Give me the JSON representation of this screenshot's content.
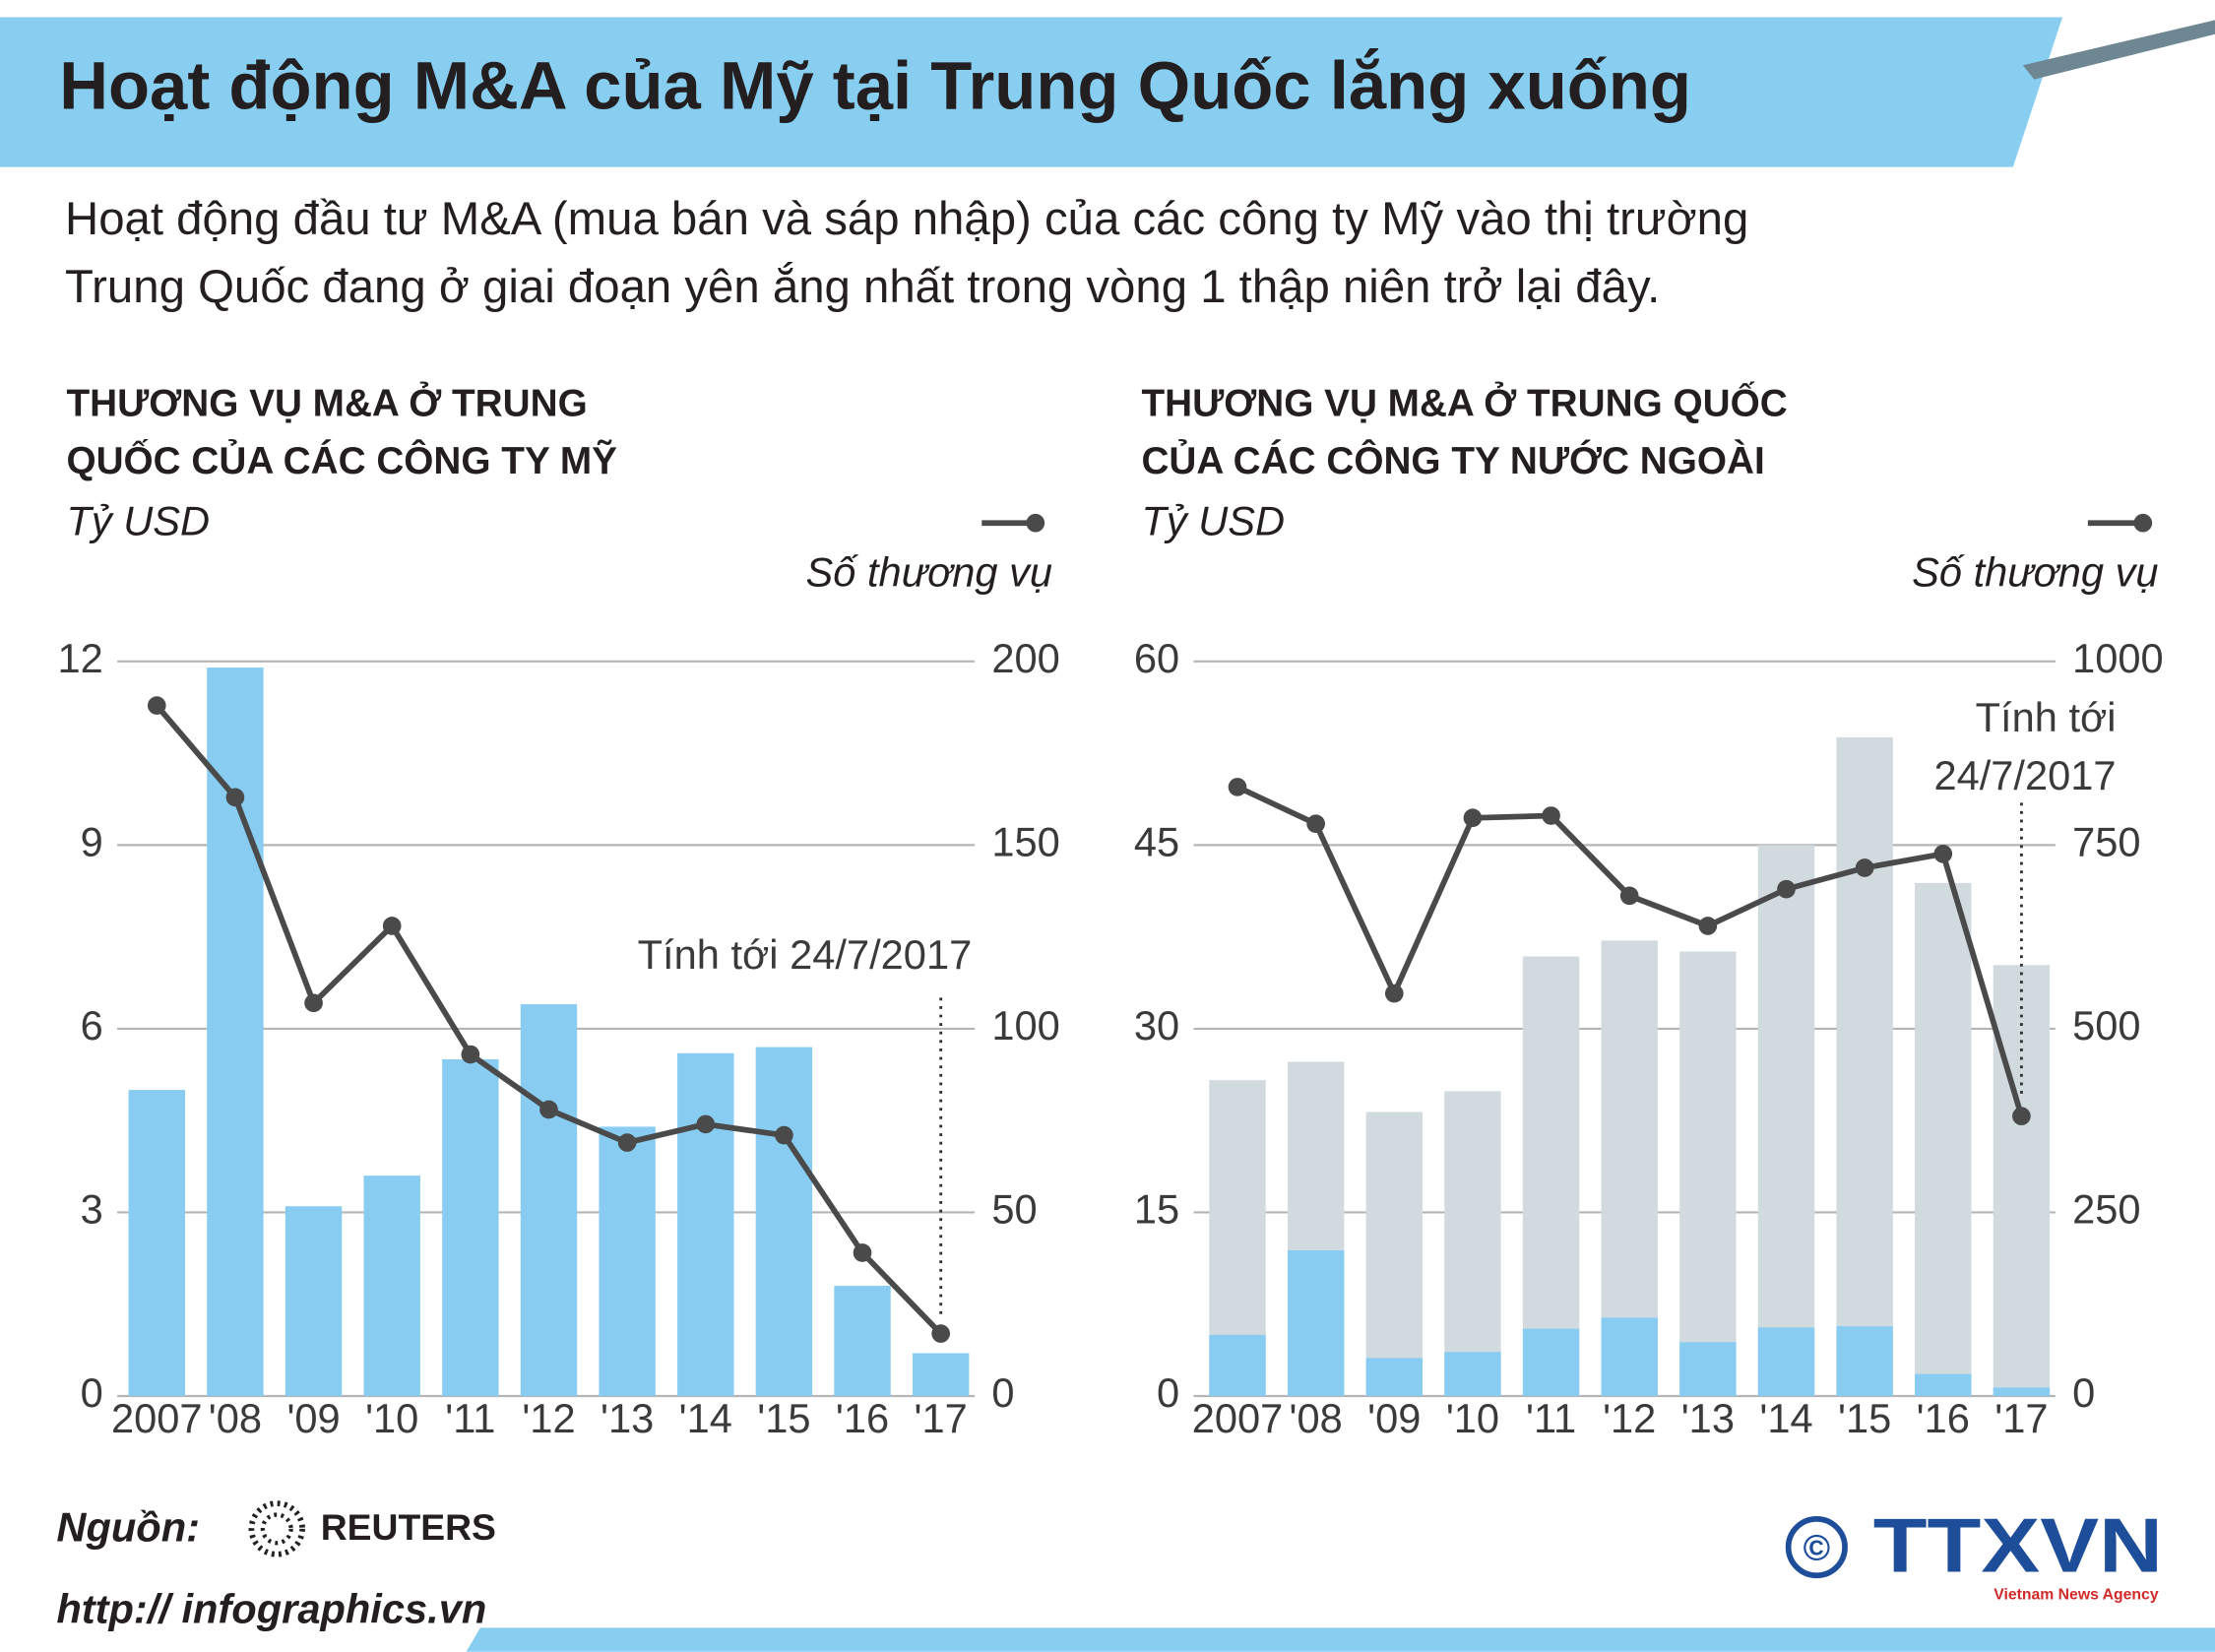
{
  "title": "Hoạt động M&A của Mỹ tại Trung Quốc lắng xuống",
  "description": [
    "Hoạt động đầu tư M&A (mua bán và sáp nhập) của các công ty Mỹ vào thị trường",
    "Trung Quốc đang ở giai đoạn yên ắng nhất trong vòng 1 thập niên trở lại đây."
  ],
  "source_label": "Nguồn:",
  "source": "REUTERS",
  "copyright": "©",
  "agency": "TTXVN",
  "agency_subtitle": "Vietnam News Agency",
  "url": "http:// infographics.vn",
  "chart_data": [
    {
      "type": "combo",
      "title": [
        "THƯƠNG VỤ M&A Ở TRUNG",
        "QUỐC CỦA CÁC CÔNG TY MỸ"
      ],
      "y_label": "Tỷ USD",
      "categories": [
        "2007",
        "'08",
        "'09",
        "'10",
        "'11",
        "'12",
        "'13",
        "'14",
        "'15",
        "'16",
        "'17"
      ],
      "series": [
        {
          "type": "bar",
          "color": "#88cdf1",
          "values": [
            5.0,
            11.9,
            3.1,
            3.6,
            5.5,
            6.4,
            4.4,
            5.6,
            5.7,
            1.8,
            0.7
          ]
        },
        {
          "type": "line",
          "name": "Số thương vụ",
          "color": "#4a4a4a",
          "axis": "y2",
          "values": [
            188,
            163,
            107,
            128,
            93,
            78,
            69,
            74,
            71,
            39,
            17
          ]
        }
      ],
      "ylim": [
        0,
        12
      ],
      "yticks": [
        0,
        3,
        6,
        9,
        12
      ],
      "y2lim": [
        0,
        200
      ],
      "y2ticks": [
        0,
        50,
        100,
        150,
        200
      ],
      "grid": true,
      "annotation": [
        "Tính tới 24/7/2017"
      ]
    },
    {
      "type": "combo",
      "title": [
        "THƯƠNG VỤ M&A Ở TRUNG QUỐC",
        "CỦA CÁC CÔNG TY NƯỚC NGOÀI"
      ],
      "y_label": "Tỷ USD",
      "categories": [
        "2007",
        "'08",
        "'09",
        "'10",
        "'11",
        "'12",
        "'13",
        "'14",
        "'15",
        "'16",
        "'17"
      ],
      "series": [
        {
          "type": "bar",
          "color": "#d1dadf",
          "values": [
            25.8,
            27.3,
            23.2,
            24.9,
            35.9,
            37.2,
            36.3,
            45.0,
            53.8,
            41.9,
            35.2
          ]
        },
        {
          "type": "bar",
          "color": "#88cdf1",
          "values": [
            5.0,
            11.9,
            3.1,
            3.6,
            5.5,
            6.4,
            4.4,
            5.6,
            5.7,
            1.8,
            0.7
          ]
        },
        {
          "type": "line",
          "name": "Số thương vụ",
          "color": "#4a4a4a",
          "axis": "y2",
          "values": [
            829,
            779,
            548,
            787,
            790,
            681,
            640,
            690,
            719,
            738,
            381
          ]
        }
      ],
      "ylim": [
        0,
        60
      ],
      "yticks": [
        0,
        15,
        30,
        45,
        60
      ],
      "y2lim": [
        0,
        1000
      ],
      "y2ticks": [
        0,
        250,
        500,
        750,
        1000
      ],
      "grid": true,
      "annotation": [
        "Tính tới",
        "24/7/2017"
      ]
    }
  ]
}
